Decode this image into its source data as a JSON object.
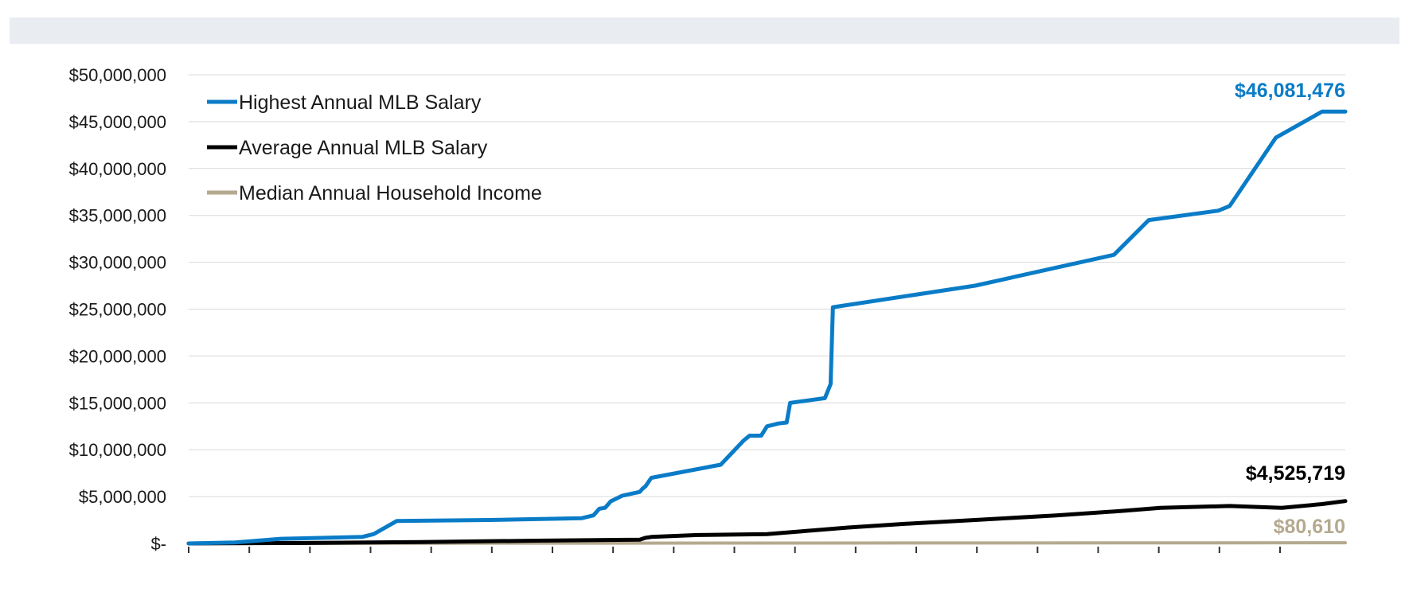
{
  "colors": {
    "header_band": "#e9ecf0",
    "grid": "#d9d9d9",
    "axis": "#bfbfbf",
    "highest": "#0a7cc7",
    "average": "#000000",
    "median": "#b5a98f"
  },
  "chart_data": {
    "type": "line",
    "title": "",
    "xlabel": "",
    "ylabel": "",
    "ylim": [
      0,
      50000000
    ],
    "y_ticks": [
      0,
      5000000,
      10000000,
      15000000,
      20000000,
      25000000,
      30000000,
      35000000,
      40000000,
      45000000,
      50000000
    ],
    "y_tick_labels": [
      "$-",
      "$5,000,000",
      "$10,000,000",
      "$15,000,000",
      "$20,000,000",
      "$25,000,000",
      "$30,000,000",
      "$35,000,000",
      "$40,000,000",
      "$45,000,000",
      "$50,000,000"
    ],
    "x_tick_count": 19,
    "x_range": [
      0,
      100
    ],
    "grid": true,
    "legend_position": "top-left",
    "series": [
      {
        "name": "Highest Annual MLB Salary",
        "color_key": "highest",
        "end_label": "$46,081,476",
        "points": [
          [
            0,
            0
          ],
          [
            4,
            100000
          ],
          [
            8,
            500000
          ],
          [
            15,
            700000
          ],
          [
            16,
            1000000
          ],
          [
            18,
            2400000
          ],
          [
            26,
            2500000
          ],
          [
            34,
            2700000
          ],
          [
            35,
            3000000
          ],
          [
            35.5,
            3700000
          ],
          [
            36,
            3800000
          ],
          [
            36.5,
            4500000
          ],
          [
            37.5,
            5100000
          ],
          [
            39,
            5500000
          ],
          [
            39.2,
            5800000
          ],
          [
            39.5,
            6100000
          ],
          [
            40,
            7000000
          ],
          [
            46,
            8400000
          ],
          [
            48,
            11000000
          ],
          [
            48.5,
            11500000
          ],
          [
            49.5,
            11500000
          ],
          [
            50,
            12500000
          ],
          [
            51,
            12800000
          ],
          [
            51.7,
            12900000
          ],
          [
            52,
            15000000
          ],
          [
            55,
            15500000
          ],
          [
            55.5,
            17000000
          ],
          [
            55.7,
            25200000
          ],
          [
            68,
            27500000
          ],
          [
            80,
            30800000
          ],
          [
            83,
            34500000
          ],
          [
            89,
            35500000
          ],
          [
            90,
            36000000
          ],
          [
            94,
            43300000
          ],
          [
            98,
            46081476
          ],
          [
            100,
            46081476
          ]
        ]
      },
      {
        "name": "Average Annual MLB Salary",
        "color_key": "average",
        "end_label": "$4,525,719",
        "points": [
          [
            0,
            0
          ],
          [
            10,
            50000
          ],
          [
            20,
            150000
          ],
          [
            30,
            300000
          ],
          [
            39,
            400000
          ],
          [
            39.5,
            600000
          ],
          [
            40,
            700000
          ],
          [
            44,
            900000
          ],
          [
            50,
            1000000
          ],
          [
            53,
            1300000
          ],
          [
            57,
            1700000
          ],
          [
            62,
            2100000
          ],
          [
            68,
            2500000
          ],
          [
            75,
            3000000
          ],
          [
            81,
            3500000
          ],
          [
            84,
            3800000
          ],
          [
            90,
            4000000
          ],
          [
            94.5,
            3800000
          ],
          [
            98,
            4200000
          ],
          [
            100,
            4525719
          ]
        ]
      },
      {
        "name": "Median Annual Household Income",
        "color_key": "median",
        "end_label": "$80,610",
        "points": [
          [
            0,
            10000
          ],
          [
            50,
            45000
          ],
          [
            100,
            80610
          ]
        ]
      }
    ]
  }
}
